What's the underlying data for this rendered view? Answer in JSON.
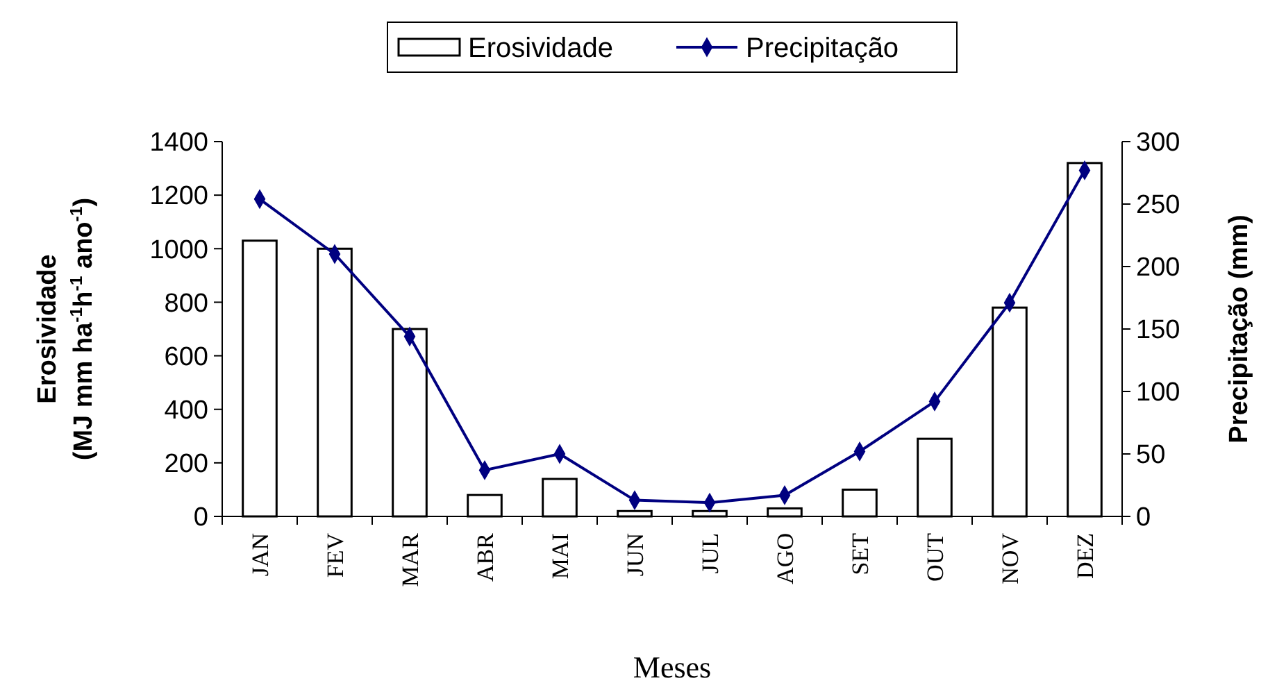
{
  "chart_data": {
    "type": "bar",
    "categories": [
      "JAN",
      "FEV",
      "MAR",
      "ABR",
      "MAI",
      "JUN",
      "JUL",
      "AGO",
      "SET",
      "OUT",
      "NOV",
      "DEZ"
    ],
    "xlabel": "Meses",
    "ylabel": "Erosividade\n(MJ mm ha$^{-1}$h$^{-1}$ ano$^{-1}$)",
    "y2label": "Precipitação (mm)",
    "series": [
      {
        "name": "Erosividade",
        "color": "#ffffff",
        "values": [
          1030,
          1000,
          700,
          80,
          140,
          20,
          20,
          30,
          100,
          290,
          780,
          1320
        ]
      },
      {
        "name": "Precipitação",
        "type": "line",
        "axis": "y2",
        "color": "#000080",
        "marker": "diamond",
        "values": [
          254,
          210,
          144,
          37,
          50,
          13,
          11,
          17,
          52,
          92,
          171,
          277
        ]
      }
    ],
    "ylim": [
      0,
      1400
    ],
    "yticks": [
      0,
      200,
      400,
      600,
      800,
      1000,
      1200,
      1400
    ],
    "y2lim": [
      0,
      300
    ],
    "y2ticks": [
      0,
      50,
      100,
      150,
      200,
      250,
      300
    ],
    "legend": "top",
    "grid": false
  }
}
